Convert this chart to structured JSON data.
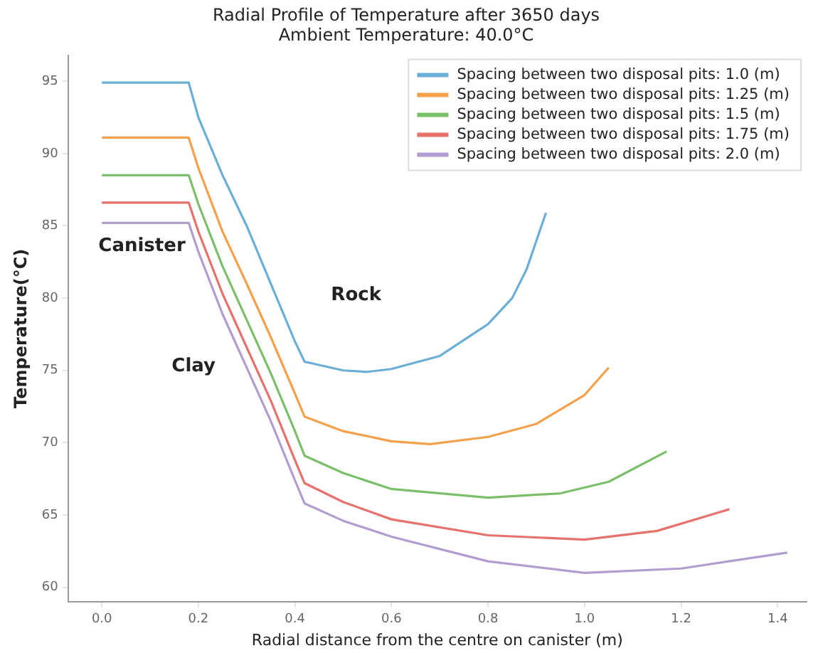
{
  "chart_data": {
    "type": "line",
    "title": "Radial Profile of Temperature after 3650 days",
    "subtitle": "Ambient Temperature: 40.0°C",
    "xlabel": "Radial distance from the centre on canister (m)",
    "ylabel": "Temperature(°C)",
    "xlim": [
      -0.07,
      1.46
    ],
    "ylim": [
      59,
      96.8
    ],
    "xticks": [
      {
        "value": 0,
        "label": "0.0"
      },
      {
        "value": 0.2,
        "label": "0.2"
      },
      {
        "value": 0.4,
        "label": "0.4"
      },
      {
        "value": 0.6,
        "label": "0.6"
      },
      {
        "value": 0.8,
        "label": "0.8"
      },
      {
        "value": 1.0,
        "label": "1.0"
      },
      {
        "value": 1.2,
        "label": "1.2"
      },
      {
        "value": 1.4,
        "label": "1.4"
      }
    ],
    "yticks": [
      60,
      65,
      70,
      75,
      80,
      85,
      90,
      95
    ],
    "grid": false,
    "legend": "top right",
    "marker": "none",
    "line_style": "solid",
    "annotations": [
      "Canister",
      "Clay",
      "Rock"
    ],
    "series": [
      {
        "name": "Spacing between two disposal pits: 1.0 (m)",
        "color": "#6baed6",
        "x": [
          0,
          0.18,
          0.2,
          0.25,
          0.3,
          0.35,
          0.4,
          0.42,
          0.5,
          0.55,
          0.6,
          0.7,
          0.8,
          0.85,
          0.88,
          0.92
        ],
        "values": [
          94.9,
          94.9,
          92.5,
          88.5,
          85,
          81,
          77,
          75.6,
          75,
          74.9,
          75.1,
          76,
          78.2,
          80,
          82,
          85.9
        ]
      },
      {
        "name": "Spacing between two disposal pits: 1.25 (m)",
        "color": "#f5a04a",
        "x": [
          0,
          0.18,
          0.2,
          0.25,
          0.3,
          0.35,
          0.4,
          0.42,
          0.5,
          0.6,
          0.68,
          0.8,
          0.9,
          1.0,
          1.05
        ],
        "values": [
          91.1,
          91.1,
          89,
          84.6,
          81,
          77.3,
          73.4,
          71.8,
          70.8,
          70.1,
          69.9,
          70.4,
          71.3,
          73.3,
          75.2
        ]
      },
      {
        "name": "Spacing between two disposal pits: 1.5 (m)",
        "color": "#7cbf6a",
        "x": [
          0,
          0.18,
          0.2,
          0.25,
          0.3,
          0.35,
          0.4,
          0.42,
          0.5,
          0.6,
          0.8,
          0.95,
          1.05,
          1.17
        ],
        "values": [
          88.5,
          88.5,
          86.5,
          82.2,
          78.5,
          74.8,
          70.8,
          69.1,
          67.9,
          66.8,
          66.2,
          66.5,
          67.3,
          69.4
        ]
      },
      {
        "name": "Spacing between two disposal pits: 1.75 (m)",
        "color": "#e8716e",
        "x": [
          0,
          0.18,
          0.2,
          0.25,
          0.3,
          0.35,
          0.4,
          0.42,
          0.5,
          0.6,
          0.8,
          1.0,
          1.15,
          1.3
        ],
        "values": [
          86.6,
          86.6,
          84.6,
          80.3,
          76.6,
          72.9,
          68.8,
          67.2,
          65.9,
          64.7,
          63.6,
          63.3,
          63.9,
          65.4
        ]
      },
      {
        "name": "Spacing between two disposal pits: 2.0 (m)",
        "color": "#b39ccf",
        "x": [
          0,
          0.18,
          0.2,
          0.25,
          0.3,
          0.35,
          0.4,
          0.42,
          0.5,
          0.6,
          0.8,
          1.0,
          1.2,
          1.42
        ],
        "values": [
          85.2,
          85.2,
          83.2,
          78.9,
          75.2,
          71.5,
          67.4,
          65.8,
          64.6,
          63.5,
          61.8,
          61,
          61.3,
          62.4
        ]
      }
    ]
  }
}
